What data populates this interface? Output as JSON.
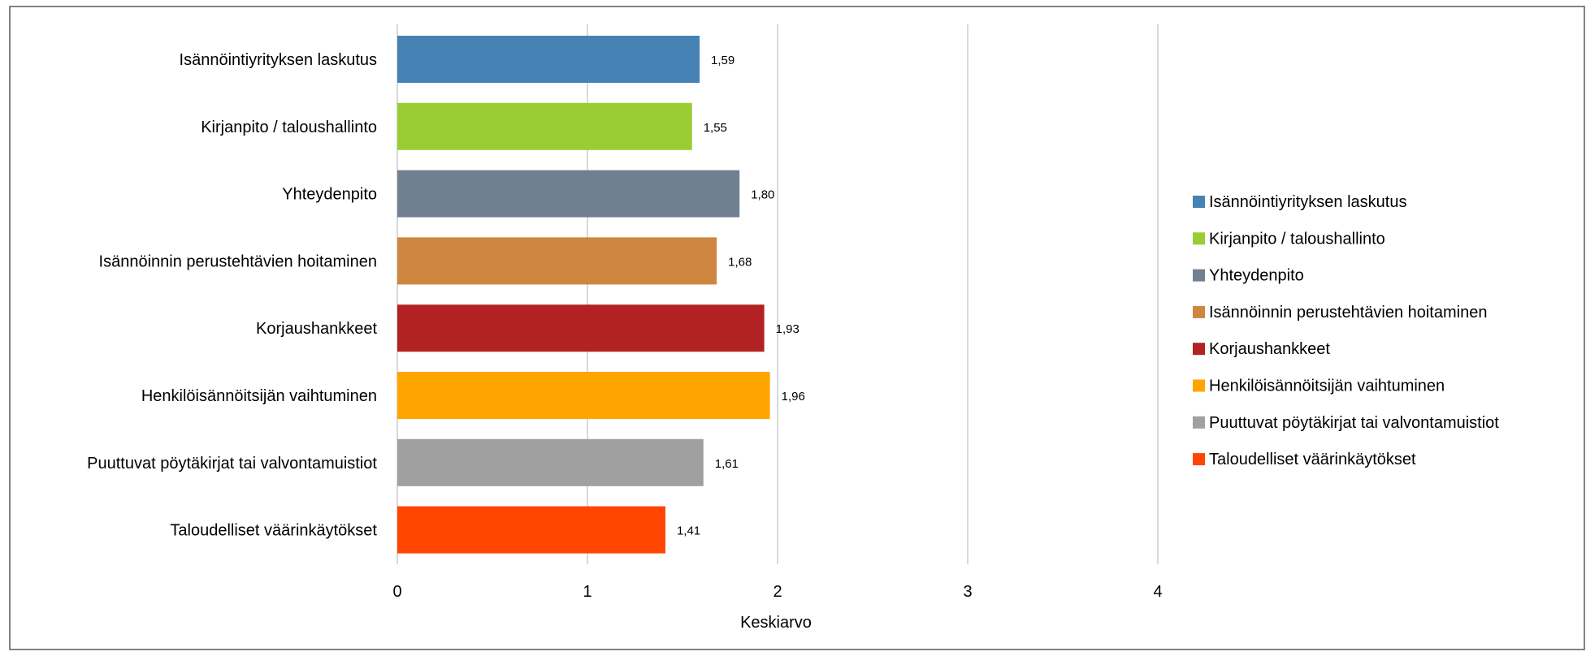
{
  "chart_data": {
    "type": "bar",
    "orientation": "horizontal",
    "title": "",
    "xlabel": "Keskiarvo",
    "ylabel": "",
    "xlim": [
      0,
      4
    ],
    "x_ticks": [
      "0",
      "1",
      "2",
      "3",
      "4"
    ],
    "grid": "vertical gridlines",
    "legend_position": "right",
    "categories": [
      "Isännöintiyrityksen laskutus",
      "Kirjanpito / taloushallinto",
      "Yhteydenpito",
      "Isännöinnin perustehtävien hoitaminen",
      "Korjaushankkeet",
      "Henkilöisännöitsijän vaihtuminen",
      "Puuttuvat pöytäkirjat tai valvontamuistiot",
      "Taloudelliset väärinkäytökset"
    ],
    "values": [
      1.59,
      1.55,
      1.8,
      1.68,
      1.93,
      1.96,
      1.61,
      1.41
    ],
    "value_labels": [
      "1,59",
      "1,55",
      "1,80",
      "1,68",
      "1,93",
      "1,96",
      "1,61",
      "1,41"
    ],
    "colors": [
      "#4682B4",
      "#9ACD32",
      "#708090",
      "#CD853F",
      "#B22222",
      "#FFA500",
      "#A0A0A0",
      "#FF4500"
    ],
    "legend": [
      "Isännöintiyrityksen laskutus",
      "Kirjanpito / taloushallinto",
      "Yhteydenpito",
      "Isännöinnin perustehtävien hoitaminen",
      "Korjaushankkeet",
      "Henkilöisännöitsijän vaihtuminen",
      "Puuttuvat pöytäkirjat tai valvontamuistiot",
      "Taloudelliset väärinkäytökset"
    ]
  }
}
